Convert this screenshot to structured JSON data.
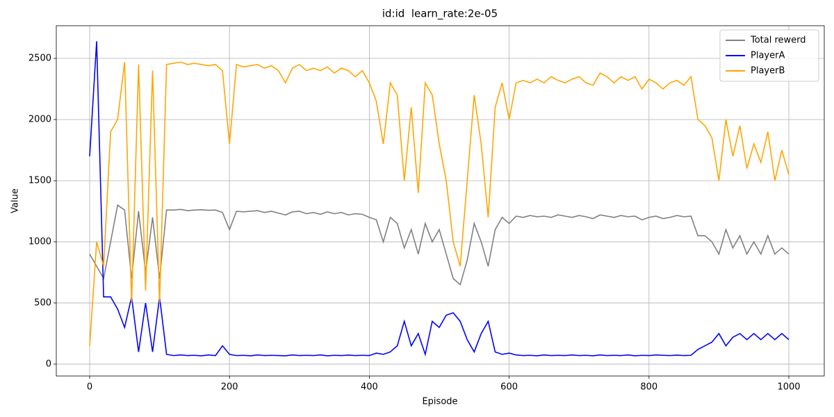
{
  "chart_data": {
    "type": "line",
    "title": "id:id  learn_rate:2e-05",
    "x_label": "Episode",
    "y_label": "Value",
    "x": [
      0,
      10,
      20,
      30,
      40,
      50,
      60,
      70,
      80,
      90,
      100,
      110,
      120,
      130,
      140,
      150,
      160,
      170,
      180,
      190,
      200,
      210,
      220,
      230,
      240,
      250,
      260,
      270,
      280,
      290,
      300,
      310,
      320,
      330,
      340,
      350,
      360,
      370,
      380,
      390,
      400,
      410,
      420,
      430,
      440,
      450,
      460,
      470,
      480,
      490,
      500,
      510,
      520,
      530,
      540,
      550,
      560,
      570,
      580,
      590,
      600,
      610,
      620,
      630,
      640,
      650,
      660,
      670,
      680,
      690,
      700,
      710,
      720,
      730,
      740,
      750,
      760,
      770,
      780,
      790,
      800,
      810,
      820,
      830,
      840,
      850,
      860,
      870,
      880,
      890,
      900,
      910,
      920,
      930,
      940,
      950,
      960,
      970,
      980,
      990,
      1000
    ],
    "series": [
      {
        "name": "Total rewerd",
        "color": "#808080",
        "values": [
          900,
          800,
          700,
          1000,
          1300,
          1260,
          700,
          1250,
          750,
          1200,
          700,
          1260,
          1260,
          1265,
          1255,
          1260,
          1262,
          1258,
          1260,
          1240,
          1100,
          1250,
          1245,
          1250,
          1255,
          1240,
          1250,
          1235,
          1220,
          1245,
          1250,
          1230,
          1240,
          1225,
          1245,
          1230,
          1240,
          1220,
          1230,
          1225,
          1200,
          1180,
          1000,
          1200,
          1150,
          950,
          1100,
          900,
          1150,
          1000,
          1100,
          900,
          700,
          650,
          850,
          1150,
          1000,
          800,
          1100,
          1200,
          1150,
          1210,
          1200,
          1215,
          1205,
          1210,
          1200,
          1220,
          1210,
          1200,
          1215,
          1205,
          1190,
          1220,
          1210,
          1200,
          1215,
          1205,
          1210,
          1180,
          1200,
          1210,
          1190,
          1200,
          1215,
          1205,
          1210,
          1050,
          1050,
          1000,
          900,
          1100,
          950,
          1050,
          900,
          1000,
          900,
          1050,
          900,
          950,
          900
        ]
      },
      {
        "name": "PlayerA",
        "color": "#0000ff",
        "values": [
          1700,
          2640,
          550,
          550,
          450,
          300,
          550,
          100,
          500,
          100,
          550,
          80,
          70,
          75,
          70,
          72,
          68,
          75,
          70,
          150,
          80,
          70,
          72,
          68,
          75,
          70,
          72,
          70,
          68,
          75,
          70,
          72,
          70,
          75,
          68,
          72,
          70,
          74,
          70,
          72,
          70,
          90,
          80,
          100,
          150,
          350,
          150,
          250,
          80,
          350,
          300,
          400,
          420,
          350,
          200,
          100,
          250,
          350,
          100,
          80,
          90,
          75,
          70,
          72,
          68,
          75,
          70,
          72,
          70,
          75,
          70,
          72,
          68,
          75,
          70,
          72,
          70,
          75,
          68,
          72,
          70,
          75,
          72,
          70,
          74,
          70,
          72,
          120,
          150,
          180,
          250,
          150,
          220,
          250,
          200,
          250,
          200,
          250,
          200,
          250,
          200
        ]
      },
      {
        "name": "PlayerB",
        "color": "#ffa500",
        "values": [
          150,
          1000,
          800,
          1900,
          2000,
          2470,
          500,
          2450,
          600,
          2400,
          500,
          2450,
          2460,
          2470,
          2450,
          2460,
          2450,
          2440,
          2450,
          2400,
          1800,
          2450,
          2430,
          2440,
          2450,
          2420,
          2440,
          2400,
          2300,
          2420,
          2450,
          2400,
          2420,
          2400,
          2430,
          2380,
          2420,
          2400,
          2350,
          2400,
          2300,
          2150,
          1800,
          2300,
          2200,
          1500,
          2100,
          1400,
          2300,
          2200,
          1800,
          1500,
          1000,
          800,
          1500,
          2200,
          1800,
          1200,
          2100,
          2300,
          2000,
          2300,
          2320,
          2300,
          2330,
          2300,
          2350,
          2320,
          2300,
          2330,
          2350,
          2300,
          2280,
          2380,
          2350,
          2300,
          2350,
          2320,
          2350,
          2250,
          2330,
          2300,
          2250,
          2300,
          2320,
          2280,
          2350,
          2000,
          1950,
          1850,
          1500,
          2000,
          1700,
          1950,
          1600,
          1800,
          1650,
          1900,
          1500,
          1750,
          1550
        ]
      }
    ],
    "xlim": [
      -47.7,
      1050.7
    ],
    "ylim": [
      -97,
      2767
    ],
    "xticks": [
      0,
      200,
      400,
      600,
      800,
      1000
    ],
    "yticks": [
      0,
      500,
      1000,
      1500,
      2000,
      2500
    ],
    "grid": true,
    "legend": "upper right"
  }
}
